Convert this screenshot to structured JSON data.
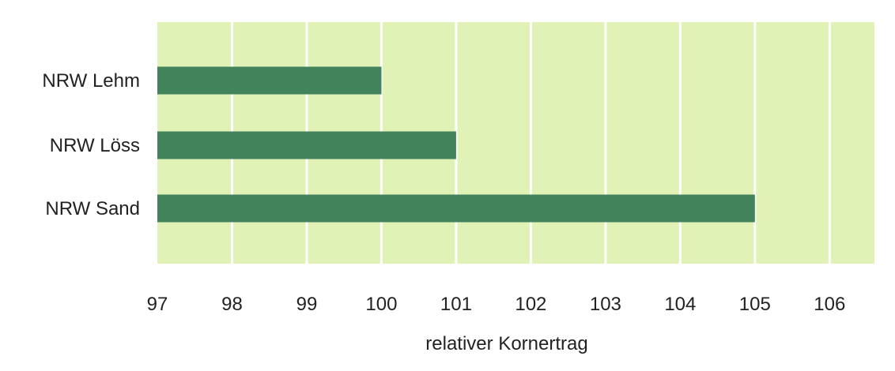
{
  "chart_data": {
    "type": "bar",
    "orientation": "horizontal",
    "categories": [
      "NRW Lehm",
      "NRW Löss",
      "NRW Sand"
    ],
    "values": [
      100,
      101,
      105
    ],
    "xlabel": "relativer Kornertrag",
    "ylabel": "",
    "xlim": [
      97,
      106.6
    ],
    "xticks": [
      "97",
      "98",
      "99",
      "100",
      "101",
      "102",
      "103",
      "104",
      "105",
      "106"
    ],
    "grid": true,
    "colors": {
      "bar": "#42835c",
      "plot_background": "#e1f2b6",
      "gridline": "#ffffff"
    }
  }
}
